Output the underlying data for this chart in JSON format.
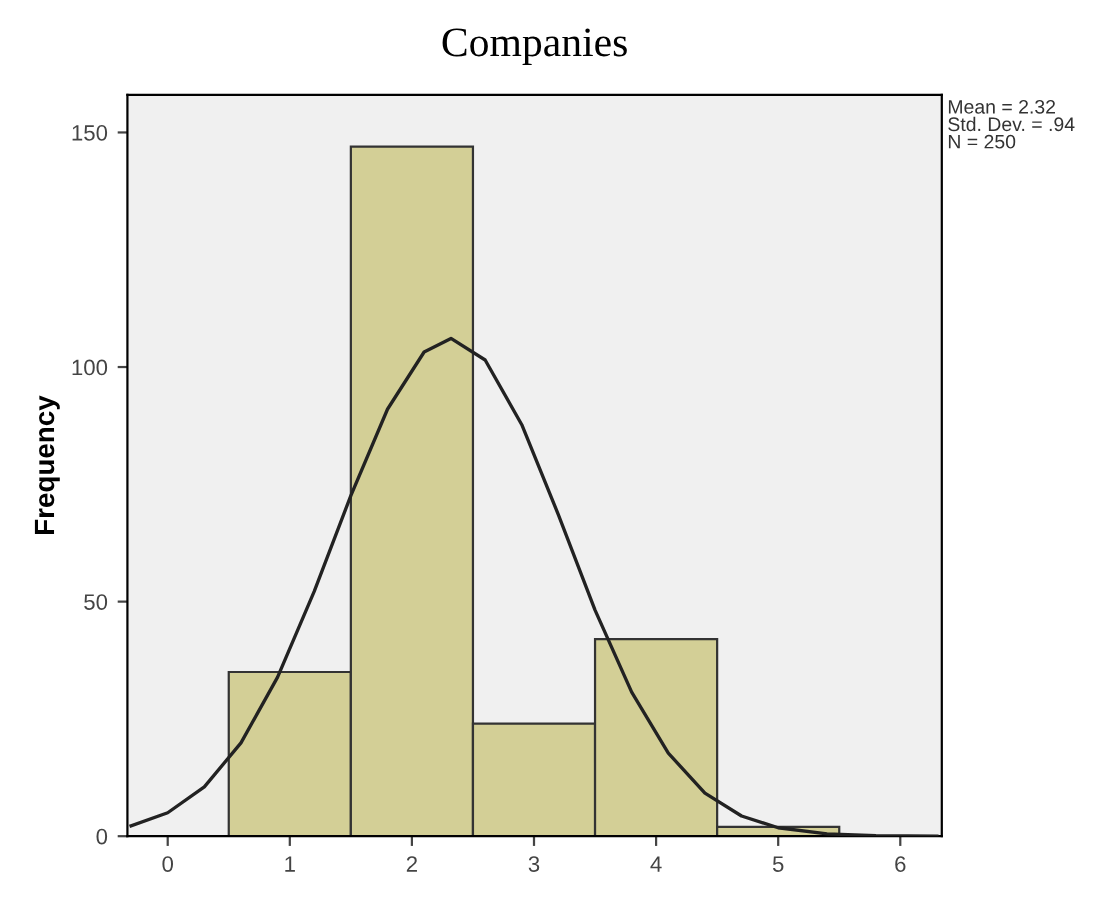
{
  "chart_data": {
    "type": "histogram",
    "title": "Companies",
    "ylabel": "Frequency",
    "bins": [
      0.5,
      1.5,
      2.5,
      3.5,
      4.5,
      5.5
    ],
    "values": [
      35,
      147,
      24,
      42,
      2
    ],
    "color": "#d3cf96",
    "series": [
      {
        "type": "line",
        "color": "#222222",
        "x": [
          -0.3,
          0.0,
          0.3,
          0.6,
          0.9,
          1.2,
          1.5,
          1.8,
          2.1,
          2.32,
          2.6,
          2.9,
          3.2,
          3.5,
          3.8,
          4.1,
          4.4,
          4.7,
          5.0,
          5.4,
          5.8,
          6.3
        ],
        "values": [
          2.2,
          5.0,
          10.5,
          19.9,
          33.9,
          52.2,
          72.6,
          91.0,
          103.2,
          106.1,
          101.5,
          87.7,
          68.5,
          48.2,
          30.7,
          17.7,
          9.2,
          4.3,
          1.8,
          0.5,
          0.1,
          0.0
        ]
      }
    ],
    "xlim": [
      -0.33,
      6.34
    ],
    "xticks": [
      0,
      1,
      2,
      3,
      4,
      5,
      6
    ],
    "ylim": [
      0,
      158
    ],
    "yticks": [
      0,
      50,
      100,
      150
    ],
    "annotations": [
      "Mean = 2.32\nStd. Dev. = .94\nN = 250"
    ],
    "grid": false,
    "legend": false
  }
}
